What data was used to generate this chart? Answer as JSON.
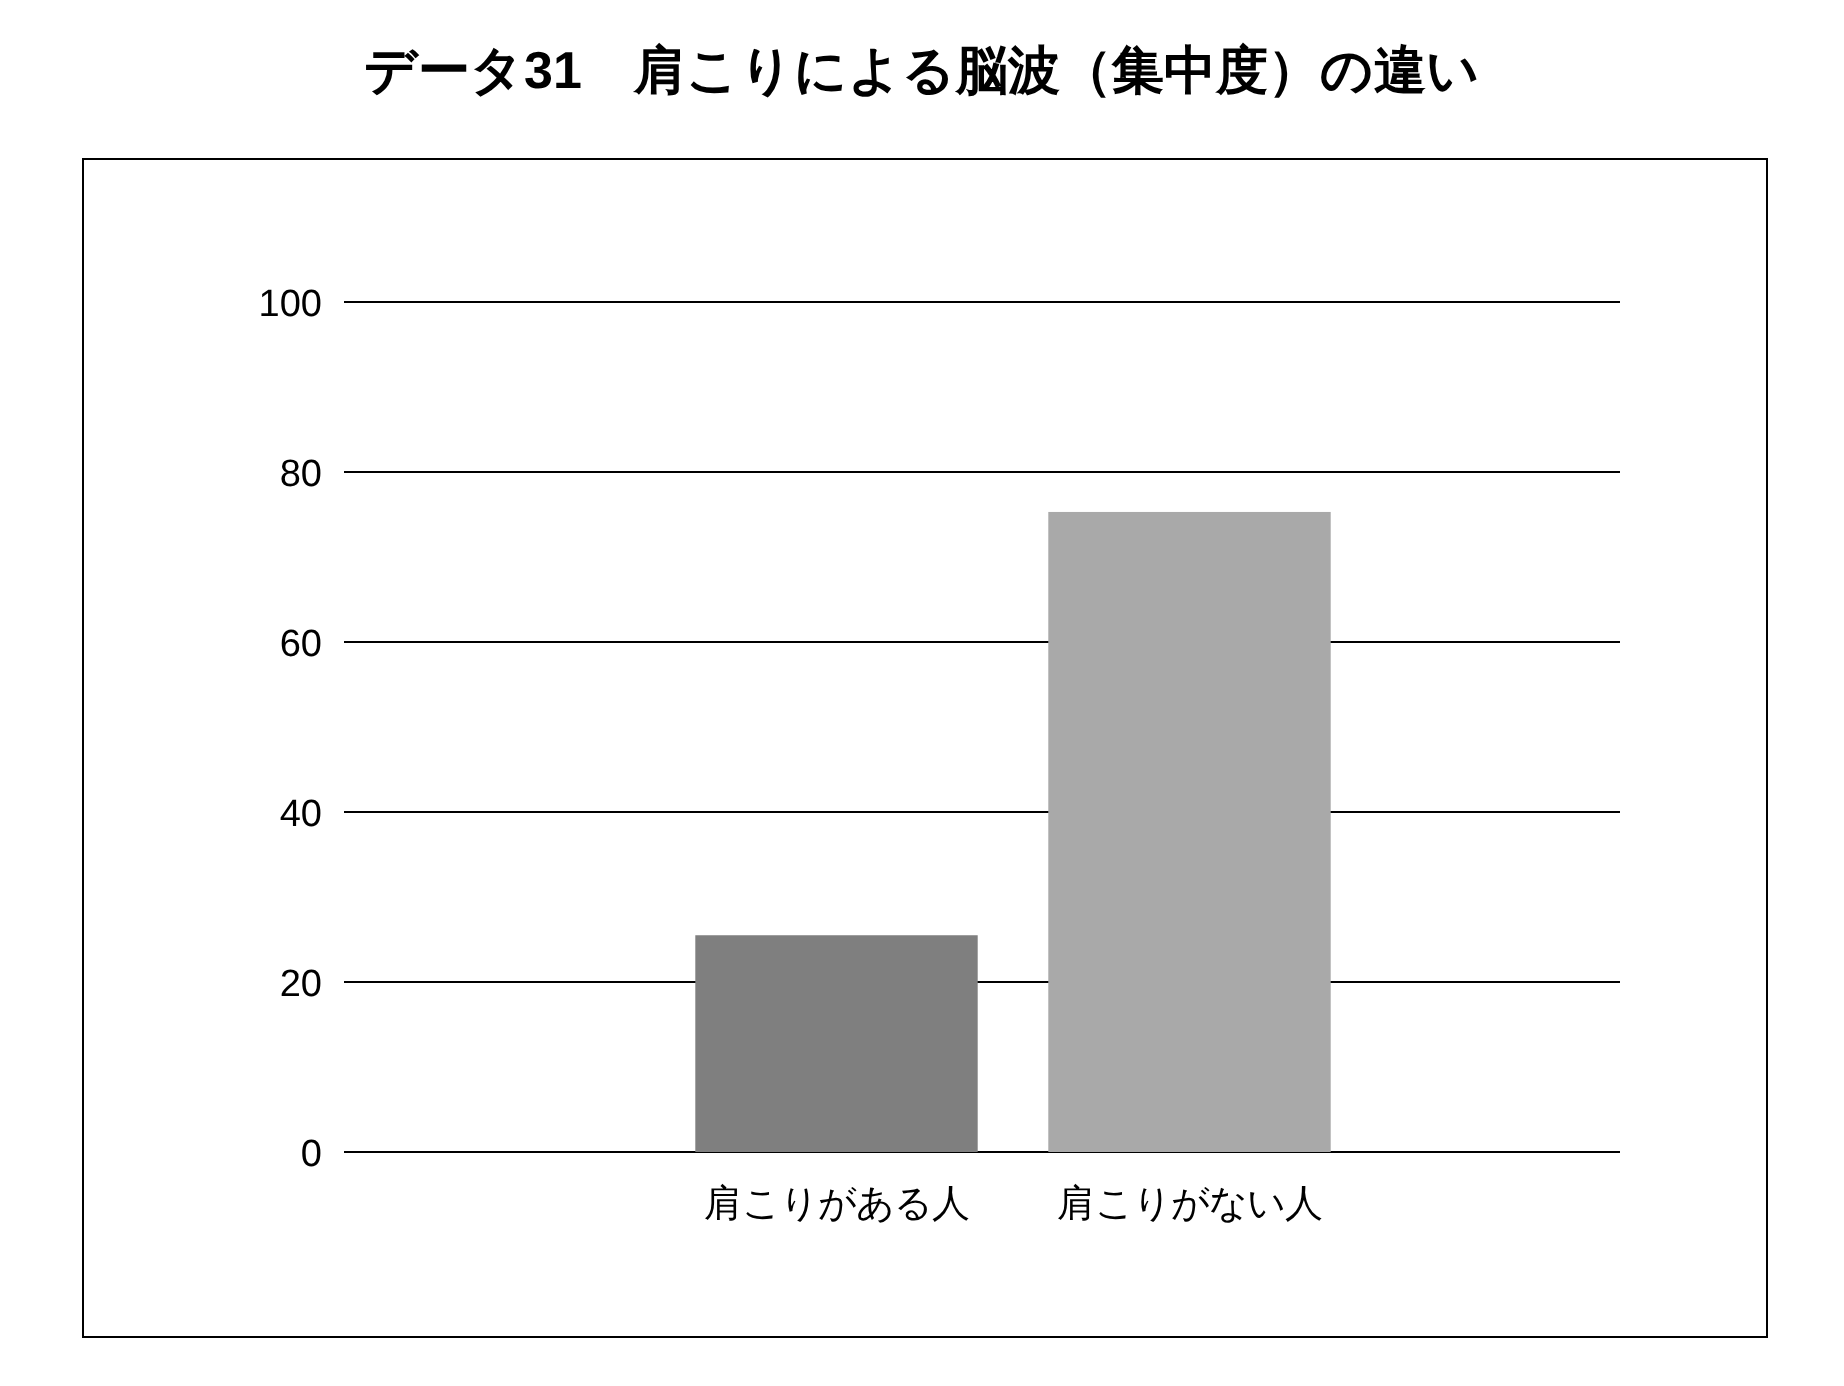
{
  "chart_data": {
    "type": "bar",
    "title": "データ31　肩こりによる脳波（集中度）の違い",
    "categories": [
      "肩こりがある人",
      "肩こりがない人"
    ],
    "values": [
      25.5,
      75.3
    ],
    "colors": [
      "#7f7f7f",
      "#a9a9a9"
    ],
    "ylim": [
      0,
      100
    ],
    "yticks": [
      0,
      20,
      40,
      60,
      80,
      100
    ],
    "grid": "y"
  }
}
